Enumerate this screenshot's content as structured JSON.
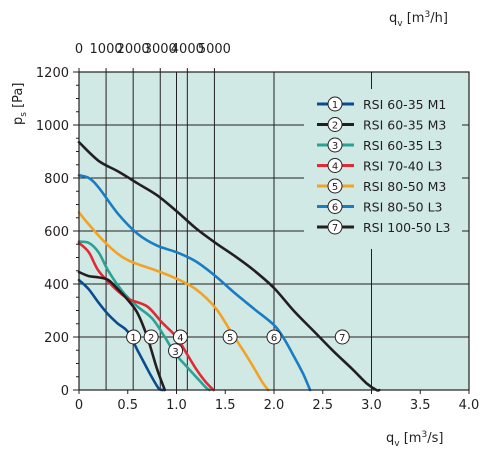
{
  "chart_data": {
    "type": "line",
    "x_axis_bottom": {
      "label": "q",
      "label_sub": "v",
      "label_unit": " [m",
      "label_unit_sup": "3",
      "label_unit_end": "/s]",
      "range": [
        0,
        4.0
      ],
      "ticks": [
        "0",
        "0.5",
        "1.0",
        "1.5",
        "2.0",
        "2.5",
        "3.0",
        "3.5",
        "4.0"
      ]
    },
    "x_axis_top": {
      "label": "q",
      "label_sub": "v",
      "label_unit": " [m",
      "label_unit_sup": "3",
      "label_unit_end": "/h]",
      "ticks": [
        "0",
        "1000",
        "2000",
        "3000",
        "4000",
        "5000"
      ]
    },
    "y_axis": {
      "label": "p",
      "label_sub": "s",
      "label_unit": " [Pa]",
      "range": [
        0,
        1200
      ],
      "ticks": [
        "0",
        "200",
        "400",
        "600",
        "800",
        "1000",
        "1200"
      ]
    },
    "grid": true,
    "legend_position": "top-right",
    "background_color": "#d1e9e5",
    "series": [
      {
        "marker": "1",
        "name": "RSI 60-35 M1",
        "color": "#0b4b8f",
        "x": [
          0.0,
          0.1,
          0.2,
          0.3,
          0.4,
          0.5,
          0.6,
          0.7,
          0.76,
          0.82,
          0.86
        ],
        "y": [
          415,
          380,
          330,
          285,
          250,
          220,
          150,
          80,
          40,
          5,
          0
        ],
        "marker_xy": [
          0.56,
          200
        ]
      },
      {
        "marker": "2",
        "name": "RSI 60-35 M3",
        "color": "#231f20",
        "x": [
          0.0,
          0.2,
          0.4,
          0.6,
          0.8,
          1.0,
          1.2,
          1.4,
          1.6,
          1.8,
          2.0,
          2.2,
          2.4,
          2.6,
          2.8,
          2.95,
          3.05,
          3.08
        ],
        "y": [
          935,
          865,
          825,
          780,
          735,
          675,
          610,
          555,
          505,
          450,
          385,
          300,
          225,
          150,
          80,
          25,
          0,
          0
        ],
        "marker_xy": [
          0.74,
          200
        ]
      },
      {
        "marker": "3",
        "name": "RSI 60-35 L3",
        "color": "#29a393",
        "x": [
          0.0,
          0.1,
          0.2,
          0.3,
          0.45,
          0.6,
          0.75,
          0.88,
          0.98,
          1.1,
          1.2,
          1.3,
          1.34
        ],
        "y": [
          560,
          555,
          520,
          450,
          370,
          315,
          270,
          200,
          140,
          90,
          50,
          10,
          0
        ],
        "marker_xy": [
          0.99,
          148
        ]
      },
      {
        "marker": "4",
        "name": "RSI 70-40 L3",
        "color": "#de2b35",
        "x": [
          0.0,
          0.1,
          0.2,
          0.35,
          0.5,
          0.7,
          0.85,
          1.0,
          1.1,
          1.2,
          1.3,
          1.38
        ],
        "y": [
          555,
          520,
          450,
          390,
          345,
          315,
          255,
          200,
          140,
          80,
          30,
          0
        ],
        "marker_xy": [
          1.04,
          200
        ]
      },
      {
        "marker": "5",
        "name": "RSI 80-50 M3",
        "color": "#f2a225",
        "x": [
          0.0,
          0.1,
          0.3,
          0.5,
          0.8,
          1.0,
          1.2,
          1.4,
          1.55,
          1.7,
          1.8,
          1.88,
          1.94
        ],
        "y": [
          670,
          625,
          545,
          490,
          450,
          420,
          380,
          310,
          225,
          140,
          80,
          30,
          0
        ],
        "marker_xy": [
          1.55,
          200
        ]
      },
      {
        "marker": "6",
        "name": "RSI 80-50 L3",
        "color": "#1a7dc3",
        "x": [
          0.0,
          0.1,
          0.2,
          0.4,
          0.6,
          0.8,
          1.0,
          1.2,
          1.4,
          1.6,
          1.8,
          2.0,
          2.1,
          2.2,
          2.3,
          2.37
        ],
        "y": [
          810,
          800,
          765,
          665,
          590,
          545,
          520,
          485,
          430,
          365,
          305,
          245,
          195,
          130,
          60,
          0
        ],
        "marker_xy": [
          2.0,
          200
        ]
      },
      {
        "marker": "7",
        "name": "RSI 100-50 L3",
        "color": "#231f20",
        "x": [
          0.0,
          0.1,
          0.2,
          0.3,
          0.4,
          0.5,
          0.6,
          0.7,
          0.8,
          0.88
        ],
        "y": [
          445,
          430,
          425,
          415,
          380,
          340,
          290,
          200,
          80,
          0
        ],
        "marker_xy": [
          2.7,
          200
        ]
      }
    ]
  }
}
